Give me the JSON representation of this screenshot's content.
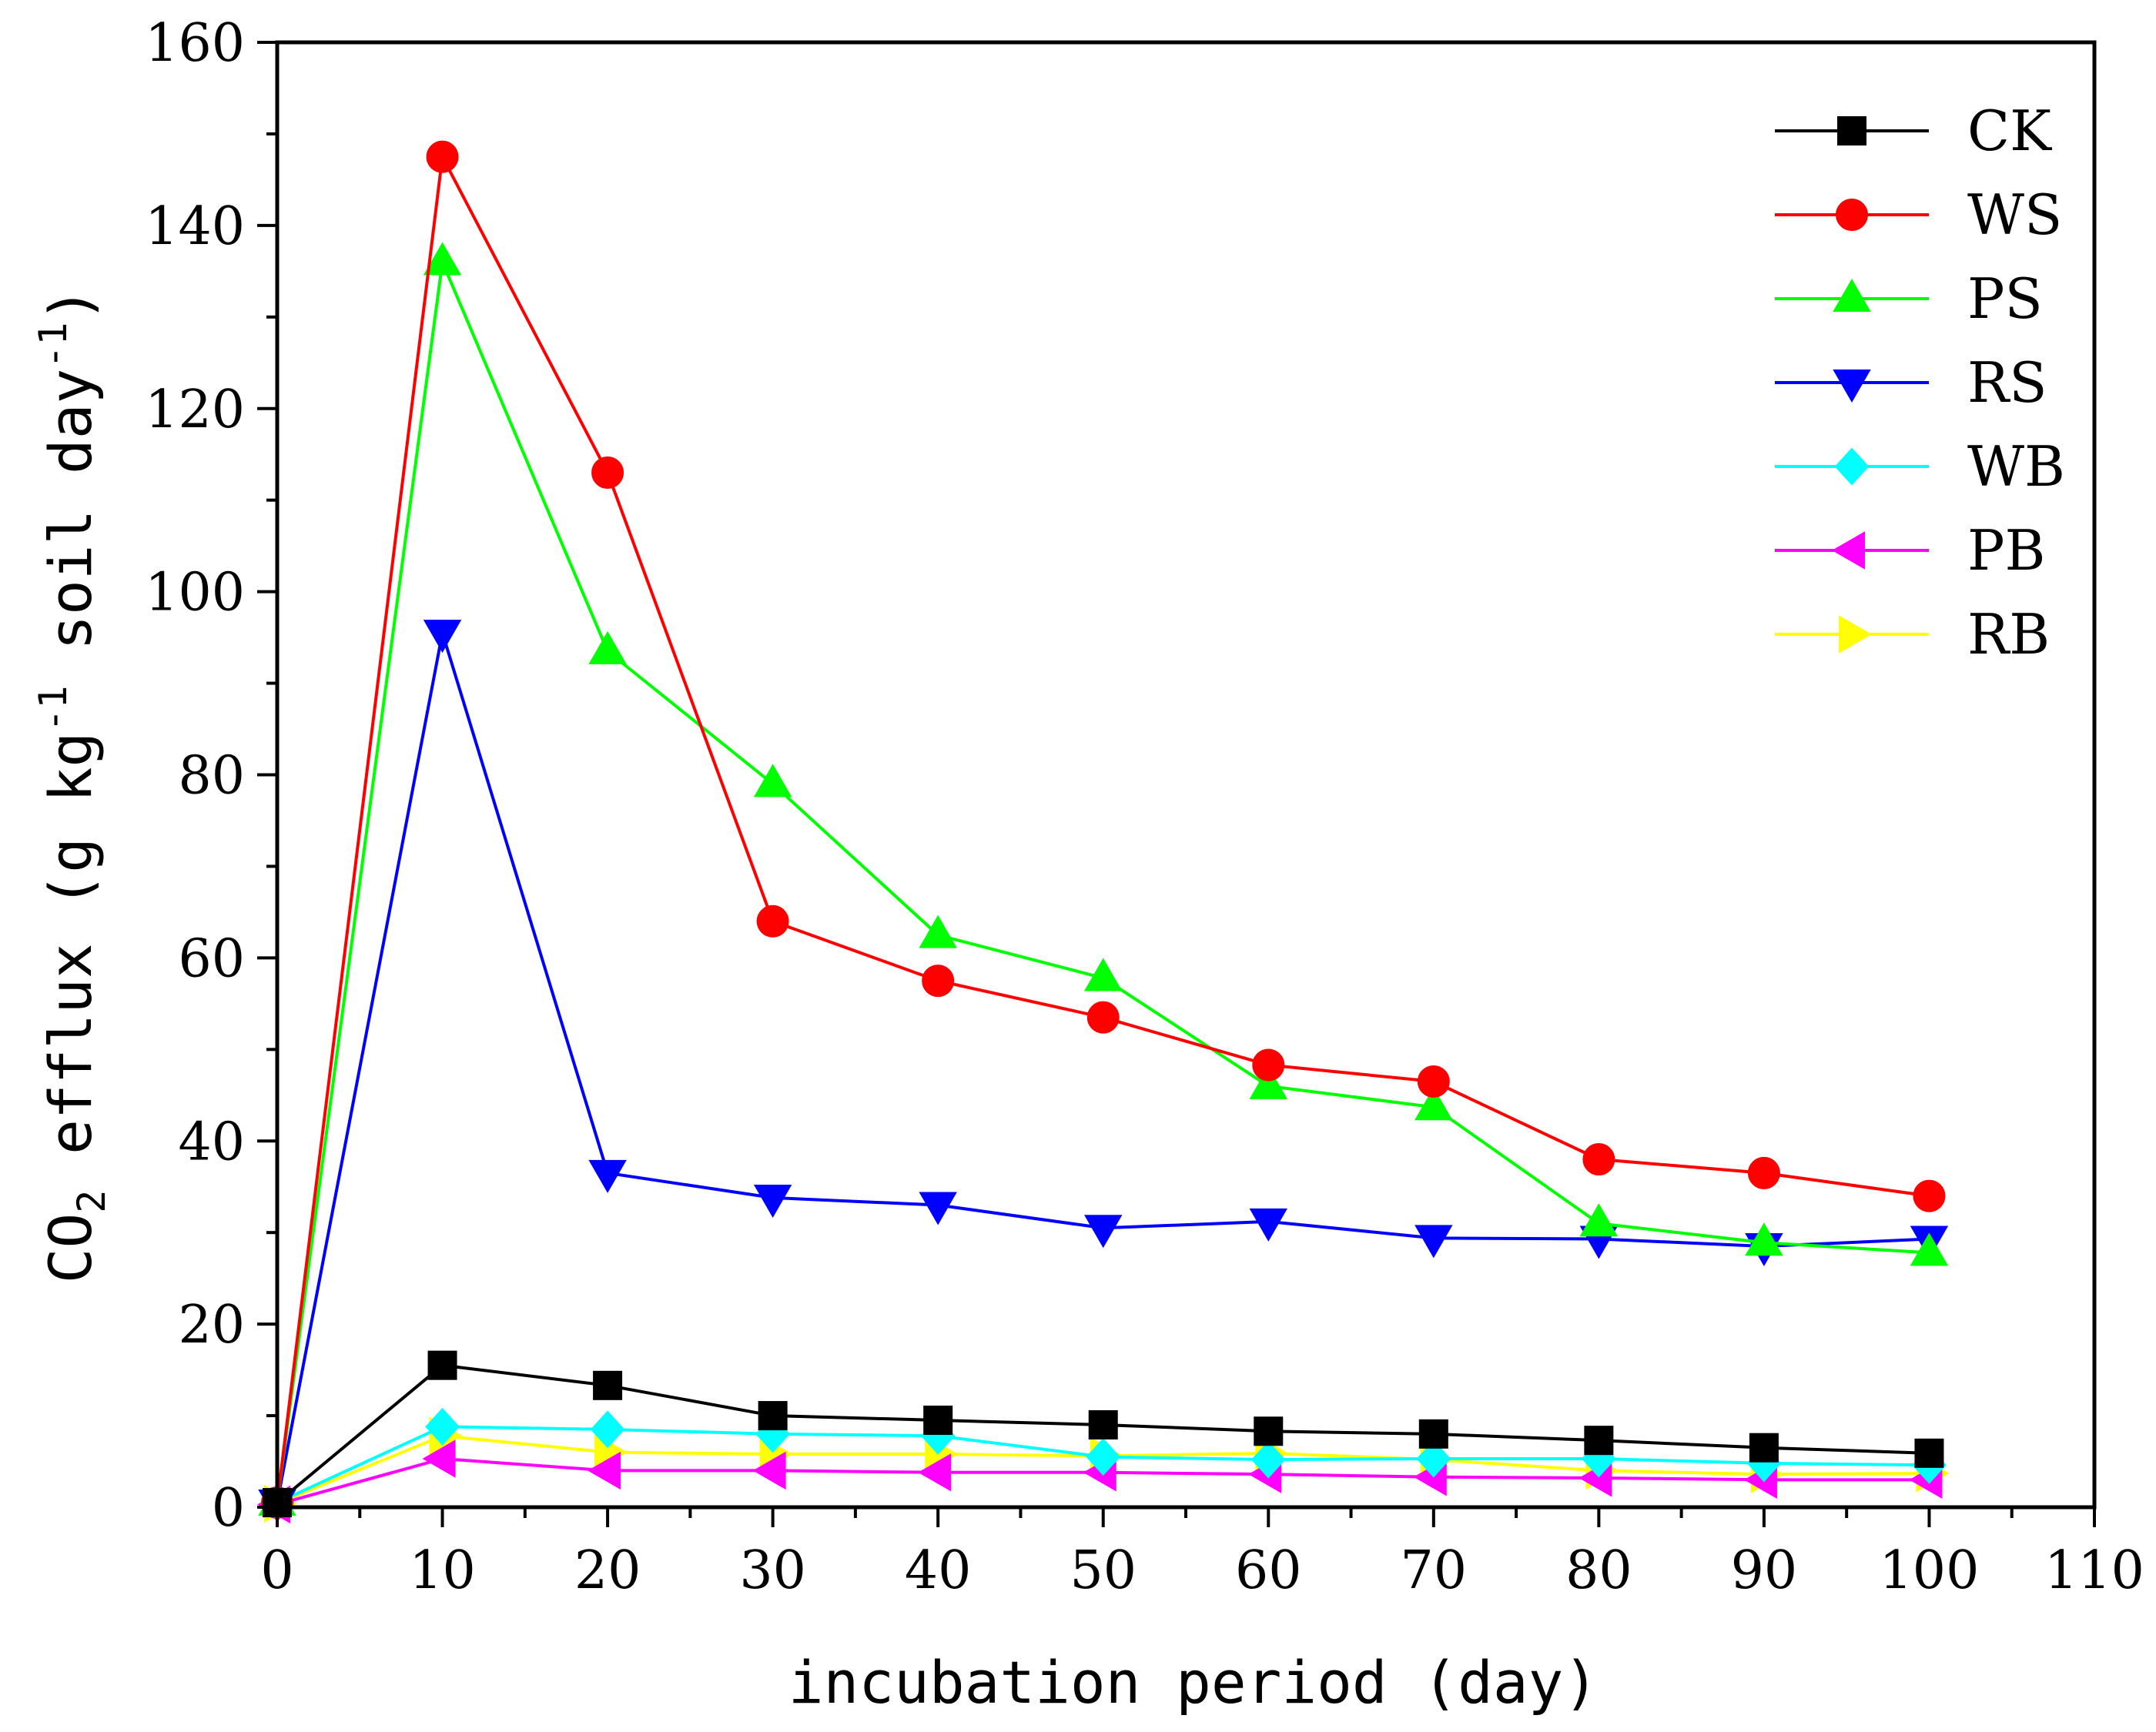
{
  "chart_data": {
    "type": "line",
    "title": "",
    "xlabel": "incubation period (day)",
    "ylabel": {
      "pre": "CO",
      "sub": "2",
      "mid": " efflux  (g kg",
      "sup": "-1",
      "post": " soil day",
      "sup2": "-1",
      "end": ")"
    },
    "xlim": [
      0,
      110
    ],
    "ylim": [
      0,
      160
    ],
    "xticks": [
      "0",
      "10",
      "20",
      "30",
      "40",
      "50",
      "60",
      "70",
      "80",
      "90",
      "100",
      "110"
    ],
    "yticks": [
      "0",
      "20",
      "40",
      "60",
      "80",
      "100",
      "120",
      "140",
      "160"
    ],
    "x": [
      0,
      10,
      20,
      30,
      40,
      50,
      60,
      70,
      80,
      90,
      100
    ],
    "legend_position": "top-right",
    "series": [
      {
        "name": "CK",
        "color": "#000000",
        "marker": "square",
        "values": [
          0.5,
          15.5,
          13.3,
          10.0,
          9.5,
          9.0,
          8.3,
          8.0,
          7.3,
          6.5,
          5.9
        ]
      },
      {
        "name": "WS",
        "color": "#ff0000",
        "marker": "circle",
        "values": [
          0.5,
          147.5,
          113.0,
          64.0,
          57.5,
          53.5,
          48.3,
          46.5,
          38.0,
          36.5,
          34.0
        ]
      },
      {
        "name": "PS",
        "color": "#00ff00",
        "marker": "triangle-up",
        "values": [
          0.5,
          136.0,
          93.5,
          79.0,
          62.5,
          57.8,
          46.0,
          43.7,
          31.0,
          28.9,
          27.8
        ]
      },
      {
        "name": "RS",
        "color": "#0000ff",
        "marker": "triangle-down",
        "values": [
          0.5,
          95.5,
          36.5,
          33.8,
          33.0,
          30.5,
          31.2,
          29.4,
          29.3,
          28.5,
          29.3
        ]
      },
      {
        "name": "WB",
        "color": "#00ffff",
        "marker": "diamond",
        "values": [
          0.5,
          8.8,
          8.5,
          8.0,
          7.8,
          5.5,
          5.2,
          5.3,
          5.3,
          4.8,
          4.6
        ]
      },
      {
        "name": "PB",
        "color": "#ff00ff",
        "marker": "triangle-left",
        "values": [
          0.3,
          5.3,
          4.0,
          4.0,
          3.8,
          3.8,
          3.6,
          3.3,
          3.2,
          3.0,
          3.0
        ]
      },
      {
        "name": "RB",
        "color": "#ffff00",
        "marker": "triangle-right",
        "values": [
          0.4,
          7.8,
          6.0,
          5.8,
          5.8,
          5.6,
          5.9,
          5.2,
          4.0,
          3.6,
          3.7
        ]
      }
    ]
  }
}
